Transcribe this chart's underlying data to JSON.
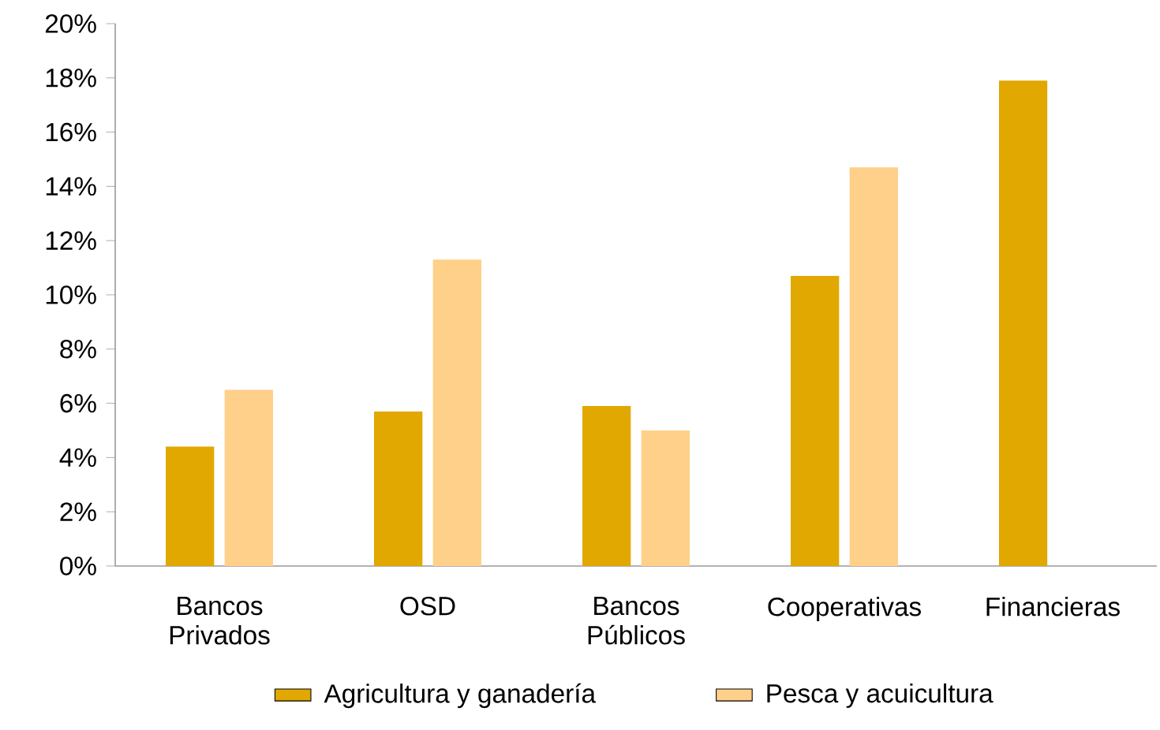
{
  "chart_data": {
    "type": "bar",
    "categories": [
      "Bancos Privados",
      "OSD",
      "Bancos Públicos",
      "Cooperativas",
      "Financieras"
    ],
    "series": [
      {
        "name": "Agricultura y ganadería",
        "color": "#e0a800",
        "values": [
          4.4,
          5.7,
          5.9,
          10.7,
          17.9
        ]
      },
      {
        "name": "Pesca y acuicultura",
        "color": "#ffd08a",
        "values": [
          6.5,
          11.3,
          5.0,
          14.7,
          null
        ]
      }
    ],
    "ylim": [
      0,
      20
    ],
    "yticks": [
      {
        "value": 0,
        "label": "0%"
      },
      {
        "value": 2,
        "label": "2%"
      },
      {
        "value": 4,
        "label": "4%"
      },
      {
        "value": 6,
        "label": "6%"
      },
      {
        "value": 8,
        "label": "8%"
      },
      {
        "value": 10,
        "label": "10%"
      },
      {
        "value": 12,
        "label": "12%"
      },
      {
        "value": 14,
        "label": "14%"
      },
      {
        "value": 16,
        "label": "16%"
      },
      {
        "value": 18,
        "label": "18%"
      },
      {
        "value": 20,
        "label": "20%"
      }
    ],
    "grid": false,
    "legend": "bottom"
  }
}
